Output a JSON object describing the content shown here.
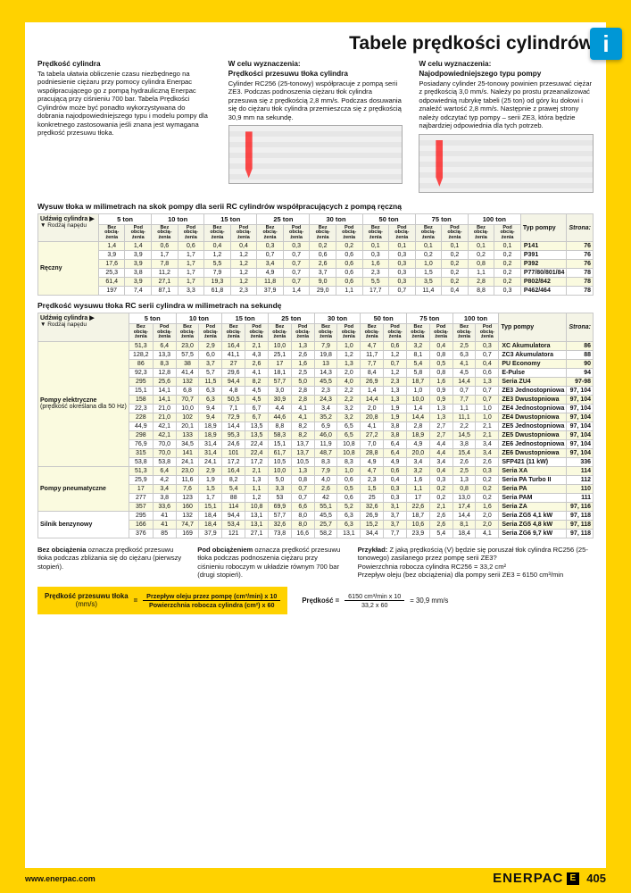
{
  "title": "Tabele prędkości cylindrów",
  "intro": {
    "col1": {
      "h": "Prędkość cylindra",
      "p": "Ta tabela ułatwia obliczenie czasu niezbędnego na podniesienie ciężaru przy pomocy cylindra Enerpac współpracującego go z pompą hydrauliczną Enerpac pracującą przy ciśnieniu 700 bar. Tabela Prędkości Cylindrów może być ponadto wykorzystywana do dobrania najodpowiedniejszego typu i modelu pompy dla konkretnego zastosowania jeśli znana jest wymagana prędkość przesuwu tłoka."
    },
    "col2": {
      "h": "W celu wyznaczenia:",
      "h2": "Prędkości przesuwu tłoka cylindra",
      "p": "Cylinder RC256 (25-tonowy) współpracuje z pompą serii ZE3. Podczas podnoszenia ciężaru tłok cylindra przesuwa się z prędkością 2,8 mm/s. Podczas dosuwania się do ciężaru tłok cylindra przemieszcza się z prędkością 30,9 mm na sekundę."
    },
    "col3": {
      "h": "W celu wyznaczenia:",
      "h2": "Najodpowiedniejszego typu pompy",
      "p": "Posiadany cylinder 25-tonowy powinien przesuwać ciężar z prędkością 3,0 mm/s. Należy po prostu przeanalizować odpowiednią rubrykę tabeli (25 ton) od góry ku dołowi i znaleźć wartość 2,8 mm/s. Następnie z prawej strony należy odczytać typ pompy – serii ZE3, która będzie najbardziej odpowiednia dla tych potrzeb."
    }
  },
  "tons": [
    "5 ton",
    "10 ton",
    "15 ton",
    "25 ton",
    "30 ton",
    "50 ton",
    "75 ton",
    "100 ton"
  ],
  "sub_no": "Bez obcią-żenia",
  "sub_yes": "Pod obcią-żenia",
  "tab1": {
    "title": "Wysuw tłoka w milimetrach na skok pompy dla serii RC cylindrów współpracujących z pompą ręczną",
    "rowlabel_top": "Udźwig cylindra ▶",
    "rowlabel_left": "▼ Rodzaj napędu",
    "typ_h": "Typ pompy",
    "pg_h": "Strona:",
    "left": "Ręczny",
    "rows": [
      {
        "v": [
          "1,4",
          "1,4",
          "0,6",
          "0,6",
          "0,4",
          "0,4",
          "0,3",
          "0,3",
          "0,2",
          "0,2",
          "0,1",
          "0,1",
          "0,1",
          "0,1",
          "0,1",
          "0,1"
        ],
        "t": "P141",
        "p": "76"
      },
      {
        "v": [
          "3,9",
          "3,9",
          "1,7",
          "1,7",
          "1,2",
          "1,2",
          "0,7",
          "0,7",
          "0,6",
          "0,6",
          "0,3",
          "0,3",
          "0,2",
          "0,2",
          "0,2",
          "0,2"
        ],
        "t": "P391",
        "p": "76"
      },
      {
        "v": [
          "17,6",
          "3,9",
          "7,8",
          "1,7",
          "5,5",
          "1,2",
          "3,4",
          "0,7",
          "2,6",
          "0,6",
          "1,6",
          "0,3",
          "1,0",
          "0,2",
          "0,8",
          "0,2"
        ],
        "t": "P392",
        "p": "76"
      },
      {
        "v": [
          "25,3",
          "3,8",
          "11,2",
          "1,7",
          "7,9",
          "1,2",
          "4,9",
          "0,7",
          "3,7",
          "0,6",
          "2,3",
          "0,3",
          "1,5",
          "0,2",
          "1,1",
          "0,2"
        ],
        "t": "P77/80/801/84",
        "p": "78"
      },
      {
        "v": [
          "61,4",
          "3,9",
          "27,1",
          "1,7",
          "19,3",
          "1,2",
          "11,8",
          "0,7",
          "9,0",
          "0,6",
          "5,5",
          "0,3",
          "3,5",
          "0,2",
          "2,8",
          "0,2"
        ],
        "t": "P802/842",
        "p": "78"
      },
      {
        "v": [
          "197",
          "7,4",
          "87,1",
          "3,3",
          "61,8",
          "2,3",
          "37,9",
          "1,4",
          "29,0",
          "1,1",
          "17,7",
          "0,7",
          "11,4",
          "0,4",
          "8,8",
          "0,3"
        ],
        "t": "P462/464",
        "p": "78"
      }
    ]
  },
  "tab2": {
    "title": "Prędkość wysuwu tłoka RC serii cylindra w milimetrach na sekundę",
    "groups": [
      {
        "label": "Pompy elektryczne",
        "sub": "(prędkość określana dla 50 Hz)",
        "rows": [
          {
            "v": [
              "51,3",
              "6,4",
              "23,0",
              "2,9",
              "16,4",
              "2,1",
              "10,0",
              "1,3",
              "7,9",
              "1,0",
              "4,7",
              "0,6",
              "3,2",
              "0,4",
              "2,5",
              "0,3"
            ],
            "t": "XC Akumulatora",
            "p": "86"
          },
          {
            "v": [
              "128,2",
              "13,3",
              "57,5",
              "6,0",
              "41,1",
              "4,3",
              "25,1",
              "2,6",
              "19,8",
              "1,2",
              "11,7",
              "1,2",
              "8,1",
              "0,8",
              "6,3",
              "0,7"
            ],
            "t": "ZC3 Akumulatora",
            "p": "88"
          },
          {
            "v": [
              "86",
              "8,3",
              "38",
              "3,7",
              "27",
              "2,6",
              "17",
              "1,6",
              "13",
              "1,3",
              "7,7",
              "0,7",
              "5,4",
              "0,5",
              "4,1",
              "0,4"
            ],
            "t": "PU Economy",
            "p": "90"
          },
          {
            "v": [
              "92,3",
              "12,8",
              "41,4",
              "5,7",
              "29,6",
              "4,1",
              "18,1",
              "2,5",
              "14,3",
              "2,0",
              "8,4",
              "1,2",
              "5,8",
              "0,8",
              "4,5",
              "0,6"
            ],
            "t": "E-Pulse",
            "p": "94"
          },
          {
            "v": [
              "295",
              "25,6",
              "132",
              "11,5",
              "94,4",
              "8,2",
              "57,7",
              "5,0",
              "45,5",
              "4,0",
              "26,9",
              "2,3",
              "18,7",
              "1,6",
              "14,4",
              "1,3"
            ],
            "t": "Seria ZU4",
            "p": "97-98"
          },
          {
            "v": [
              "15,1",
              "14,1",
              "6,8",
              "6,3",
              "4,8",
              "4,5",
              "3,0",
              "2,8",
              "2,3",
              "2,2",
              "1,4",
              "1,3",
              "1,0",
              "0,9",
              "0,7",
              "0,7"
            ],
            "t": "ZE3 Jednostopniowa",
            "p": "97, 104"
          },
          {
            "v": [
              "158",
              "14,1",
              "70,7",
              "6,3",
              "50,5",
              "4,5",
              "30,9",
              "2,8",
              "24,3",
              "2,2",
              "14,4",
              "1,3",
              "10,0",
              "0,9",
              "7,7",
              "0,7"
            ],
            "t": "ZE3 Dwustopniowa",
            "p": "97, 104"
          },
          {
            "v": [
              "22,3",
              "21,0",
              "10,0",
              "9,4",
              "7,1",
              "6,7",
              "4,4",
              "4,1",
              "3,4",
              "3,2",
              "2,0",
              "1,9",
              "1,4",
              "1,3",
              "1,1",
              "1,0"
            ],
            "t": "ZE4 Jednostopniowa",
            "p": "97, 104"
          },
          {
            "v": [
              "228",
              "21,0",
              "102",
              "9,4",
              "72,9",
              "6,7",
              "44,6",
              "4,1",
              "35,2",
              "3,2",
              "20,8",
              "1,9",
              "14,4",
              "1,3",
              "11,1",
              "1,0"
            ],
            "t": "ZE4 Dwustopniowa",
            "p": "97, 104"
          },
          {
            "v": [
              "44,9",
              "42,1",
              "20,1",
              "18,9",
              "14,4",
              "13,5",
              "8,8",
              "8,2",
              "6,9",
              "6,5",
              "4,1",
              "3,8",
              "2,8",
              "2,7",
              "2,2",
              "2,1"
            ],
            "t": "ZE5 Jednostopniowa",
            "p": "97, 104"
          },
          {
            "v": [
              "298",
              "42,1",
              "133",
              "18,9",
              "95,3",
              "13,5",
              "58,3",
              "8,2",
              "46,0",
              "6,5",
              "27,2",
              "3,8",
              "18,9",
              "2,7",
              "14,5",
              "2,1"
            ],
            "t": "ZE5 Dwustopniowa",
            "p": "97, 104"
          },
          {
            "v": [
              "76,9",
              "70,0",
              "34,5",
              "31,4",
              "24,6",
              "22,4",
              "15,1",
              "13,7",
              "11,9",
              "10,8",
              "7,0",
              "6,4",
              "4,9",
              "4,4",
              "3,8",
              "3,4"
            ],
            "t": "ZE6 Jednostopniowa",
            "p": "97, 104"
          },
          {
            "v": [
              "315",
              "70,0",
              "141",
              "31,4",
              "101",
              "22,4",
              "61,7",
              "13,7",
              "48,7",
              "10,8",
              "28,8",
              "6,4",
              "20,0",
              "4,4",
              "15,4",
              "3,4"
            ],
            "t": "ZE6 Dwustopniowa",
            "p": "97, 104"
          },
          {
            "v": [
              "53,8",
              "53,8",
              "24,1",
              "24,1",
              "17,2",
              "17,2",
              "10,5",
              "10,5",
              "8,3",
              "8,3",
              "4,9",
              "4,9",
              "3,4",
              "3,4",
              "2,6",
              "2,6"
            ],
            "t": "SFP421 (11 kW)",
            "p": "336"
          }
        ]
      },
      {
        "label": "Pompy pneumatyczne",
        "rows": [
          {
            "v": [
              "51,3",
              "6,4",
              "23,0",
              "2,9",
              "16,4",
              "2,1",
              "10,0",
              "1,3",
              "7,9",
              "1,0",
              "4,7",
              "0,6",
              "3,2",
              "0,4",
              "2,5",
              "0,3"
            ],
            "t": "Seria XA",
            "p": "114"
          },
          {
            "v": [
              "25,9",
              "4,2",
              "11,6",
              "1,9",
              "8,2",
              "1,3",
              "5,0",
              "0,8",
              "4,0",
              "0,6",
              "2,3",
              "0,4",
              "1,6",
              "0,3",
              "1,3",
              "0,2"
            ],
            "t": "Seria PA Turbo II",
            "p": "112"
          },
          {
            "v": [
              "17",
              "3,4",
              "7,6",
              "1,5",
              "5,4",
              "1,1",
              "3,3",
              "0,7",
              "2,6",
              "0,5",
              "1,5",
              "0,3",
              "1,1",
              "0,2",
              "0,8",
              "0,2"
            ],
            "t": "Seria PA",
            "p": "110"
          },
          {
            "v": [
              "277",
              "3,8",
              "123",
              "1,7",
              "88",
              "1,2",
              "53",
              "0,7",
              "42",
              "0,6",
              "25",
              "0,3",
              "17",
              "0,2",
              "13,0",
              "0,2"
            ],
            "t": "Seria PAM",
            "p": "111"
          },
          {
            "v": [
              "357",
              "33,6",
              "160",
              "15,1",
              "114",
              "10,8",
              "69,9",
              "6,6",
              "55,1",
              "5,2",
              "32,6",
              "3,1",
              "22,6",
              "2,1",
              "17,4",
              "1,6"
            ],
            "t": "Seria ZA",
            "p": "97, 116"
          }
        ]
      },
      {
        "label": "Silnik benzynowy",
        "rows": [
          {
            "v": [
              "295",
              "41",
              "132",
              "18,4",
              "94,4",
              "13,1",
              "57,7",
              "8,0",
              "45,5",
              "6,3",
              "26,9",
              "3,7",
              "18,7",
              "2,6",
              "14,4",
              "2,0"
            ],
            "t": "Seria ZG5 4,1 kW",
            "p": "97, 118"
          },
          {
            "v": [
              "166",
              "41",
              "74,7",
              "18,4",
              "53,4",
              "13,1",
              "32,6",
              "8,0",
              "25,7",
              "6,3",
              "15,2",
              "3,7",
              "10,6",
              "2,6",
              "8,1",
              "2,0"
            ],
            "t": "Seria ZG5 4,8 kW",
            "p": "97, 118"
          },
          {
            "v": [
              "376",
              "85",
              "169",
              "37,9",
              "121",
              "27,1",
              "73,8",
              "16,6",
              "58,2",
              "13,1",
              "34,4",
              "7,7",
              "23,9",
              "5,4",
              "18,4",
              "4,1"
            ],
            "t": "Seria ZG6 9,7 kW",
            "p": "97, 118"
          }
        ]
      }
    ]
  },
  "notes": {
    "n1": {
      "b": "Bez obciążenia",
      "t": " oznacza prędkość przesuwu tłoka podczas zbliżania się do ciężaru (pierwszy stopień)."
    },
    "n2": {
      "b": "Pod obciążeniem",
      "t": " oznacza prędkość przesuwu tłoka podczas podnoszenia ciężaru przy ciśnieniu roboczym w układzie równym 700 bar (drugi stopień)."
    },
    "n3": {
      "b": "Przykład:",
      "t": " Z jaką prędkością (V) będzie się poruszał tłok cylindra RC256 (25-tonowego) zasilanego przez pompę serii ZE3?",
      "l2": "Powierzchnia robocza cylindra RC256 = 33,2 cm²",
      "l3": "Przepływ oleju (bez obciążenia) dla pompy serii ZE3 = 6150 cm³/min"
    }
  },
  "formula": {
    "lab1": "Prędkość przesuwu tłoka",
    "unit": "(mm/s)",
    "top": "Przepływ oleju przez pompę (cm³/min) x 10",
    "bot": "Powierzchnia robocza cylindra (cm²) x 60"
  },
  "calc": {
    "lab": "Prędkość =",
    "top": "6150 cm³/min x 10",
    "bot": "33,2 x 60",
    "res": "= 30,9 mm/s"
  },
  "footer": {
    "url": "www.enerpac.com",
    "brand": "ENERPAC",
    "pagenum": "405"
  }
}
